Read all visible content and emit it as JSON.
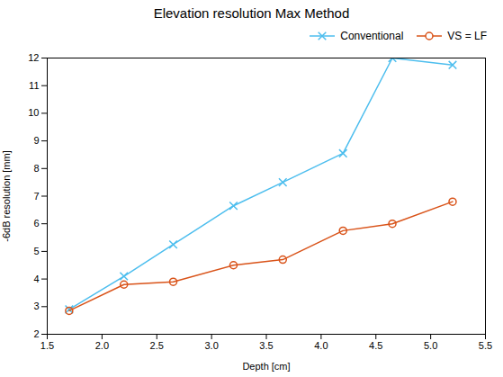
{
  "chart_data": {
    "type": "line",
    "title": "Elevation resolution Max Method",
    "xlabel": "Depth [cm]",
    "ylabel": "-6dB resolution [mm]",
    "x": [
      1.7,
      2.2,
      2.65,
      3.2,
      3.65,
      4.2,
      4.65,
      5.2
    ],
    "series": [
      {
        "name": "Conventional",
        "color": "#4DBEEE",
        "marker": "x",
        "values": [
          2.9,
          4.1,
          5.25,
          6.65,
          7.5,
          8.55,
          12.0,
          11.75
        ]
      },
      {
        "name": "VS = LF",
        "color": "#D95319",
        "marker": "o",
        "values": [
          2.85,
          3.8,
          3.9,
          4.5,
          4.7,
          5.75,
          6.0,
          6.8
        ]
      }
    ],
    "xlim": [
      1.5,
      5.5
    ],
    "ylim": [
      2,
      12
    ],
    "xticks": [
      1.5,
      {
        "value": 2,
        "label": "2.0"
      },
      2.5,
      {
        "value": 3,
        "label": "3.0"
      },
      3.5,
      {
        "value": 4,
        "label": "4.0"
      },
      4.5,
      {
        "value": 5,
        "label": "5.0"
      },
      5.5
    ],
    "yticks": [
      2,
      3,
      4,
      5,
      6,
      7,
      8,
      9,
      10,
      11,
      12
    ],
    "grid": false,
    "legend": "upper right"
  }
}
